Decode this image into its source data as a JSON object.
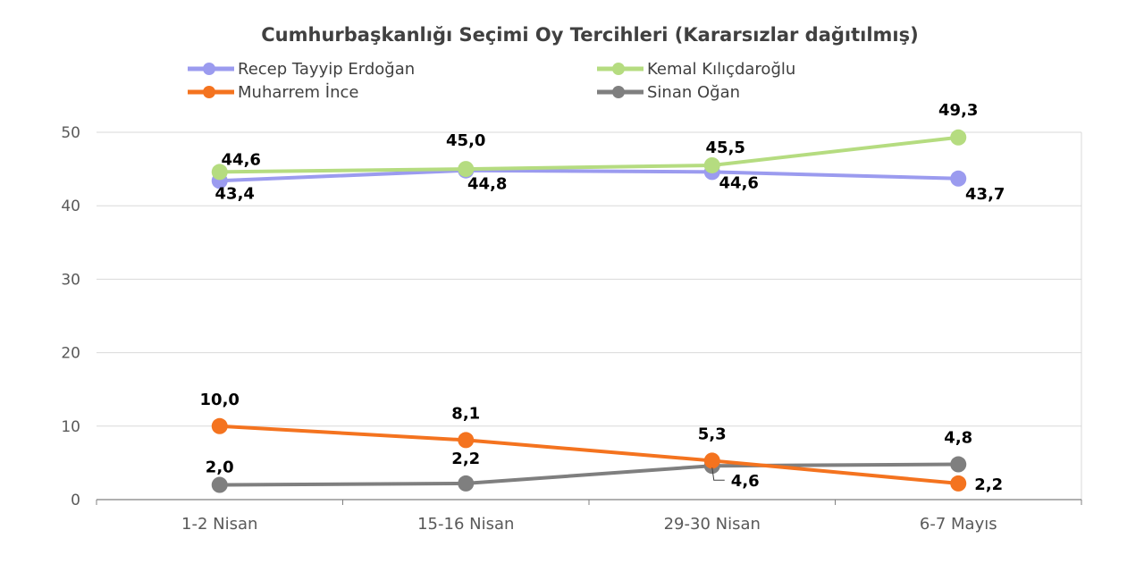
{
  "chart_data": {
    "type": "line",
    "title": "Cumhurbaşkanlığı Seçimi Oy Tercihleri (Kararsızlar dağıtılmış)",
    "categories": [
      "1-2 Nisan",
      "15-16 Nisan",
      "29-30 Nisan",
      "6-7 Mayıs"
    ],
    "ylim": [
      0,
      50
    ],
    "yticks": [
      0,
      10,
      20,
      30,
      40,
      50
    ],
    "grid": true,
    "legend": "top",
    "series": [
      {
        "name": "Recep Tayyip Erdoğan",
        "color": "#9b9bef",
        "values": [
          43.4,
          44.8,
          44.6,
          43.7
        ],
        "labels": [
          "43,4",
          "44,8",
          "44,6",
          "43,7"
        ]
      },
      {
        "name": "Kemal Kılıçdaroğlu",
        "color": "#b5dc80",
        "values": [
          44.6,
          45.0,
          45.5,
          49.3
        ],
        "labels": [
          "44,6",
          "45,0",
          "45,5",
          "49,3"
        ]
      },
      {
        "name": "Muharrem İnce",
        "color": "#f4731f",
        "values": [
          10.0,
          8.1,
          5.3,
          2.2
        ],
        "labels": [
          "10,0",
          "8,1",
          "5,3",
          "2,2"
        ]
      },
      {
        "name": "Sinan Oğan",
        "color": "#7f7f7f",
        "values": [
          2.0,
          2.2,
          4.6,
          4.8
        ],
        "labels": [
          "2,0",
          "2,2",
          "4,6",
          "4,8"
        ]
      }
    ]
  }
}
